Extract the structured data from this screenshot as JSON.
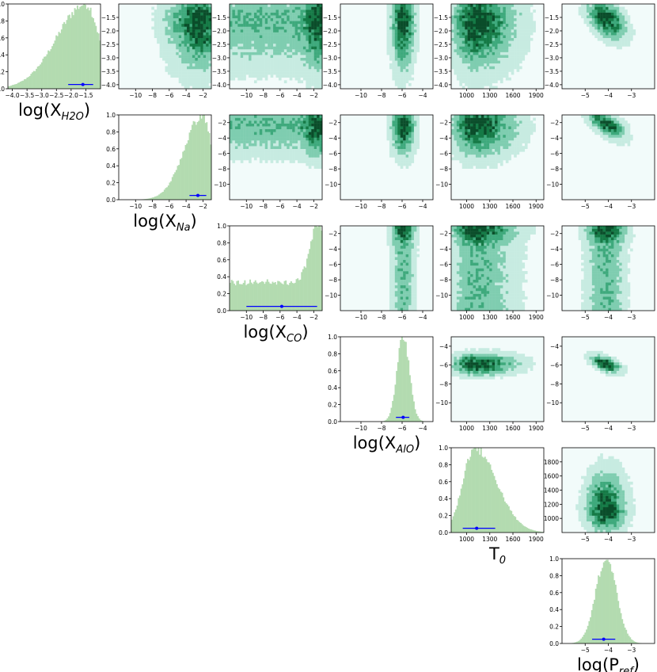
{
  "chart_data": {
    "type": "corner",
    "parameters": [
      {
        "name": "logX_H2O",
        "label_base": "log(X",
        "label_sub": "H2O",
        "label_end": ")",
        "range": [
          -4.15,
          -1.0
        ],
        "ticks": [
          -4.0,
          -3.5,
          -3.0,
          -2.5,
          -2.0,
          -1.5
        ],
        "tick_labels": [
          "−4.0",
          "−3.5",
          "−3.0",
          "−2.5",
          "−2.0",
          "−1.5"
        ],
        "mode": -1.5,
        "median": -1.6,
        "err_low": -2.1,
        "err_high": -1.25,
        "width": 0.45,
        "skew": "left"
      },
      {
        "name": "logX_Na",
        "label_base": "log(X",
        "label_sub": "Na",
        "label_end": ")",
        "range": [
          -12,
          -1
        ],
        "ticks": [
          -10,
          -8,
          -6,
          -4,
          -2
        ],
        "tick_labels": [
          "−10",
          "−8",
          "−6",
          "−4",
          "−2"
        ],
        "mode": -2.0,
        "median": -2.6,
        "err_low": -3.6,
        "err_high": -1.6,
        "width": 1.0,
        "skew": "left"
      },
      {
        "name": "logX_CO",
        "label_base": "log(X",
        "label_sub": "CO",
        "label_end": ")",
        "range": [
          -12,
          -1
        ],
        "ticks": [
          -10,
          -8,
          -6,
          -4,
          -2
        ],
        "tick_labels": [
          "−10",
          "−8",
          "−6",
          "−4",
          "−2"
        ],
        "mode": -1.5,
        "median": -5.8,
        "err_low": -10.0,
        "err_high": -1.6,
        "width": 1.0,
        "skew": "flat"
      },
      {
        "name": "logX_AlO",
        "label_base": "log(X",
        "label_sub": "AlO",
        "label_end": ")",
        "range": [
          -12,
          -3
        ],
        "ticks": [
          -10,
          -8,
          -6,
          -4
        ],
        "tick_labels": [
          "−10",
          "−8",
          "−6",
          "−4"
        ],
        "mode": -5.9,
        "median": -5.9,
        "err_low": -6.6,
        "err_high": -5.3,
        "width": 0.6,
        "skew": "none"
      },
      {
        "name": "T0",
        "label_base": "T",
        "label_sub": "0",
        "label_end": "",
        "range": [
          800,
          2000
        ],
        "ticks": [
          1000,
          1300,
          1600,
          1900
        ],
        "tick_labels": [
          "1000",
          "1300",
          "1600",
          "1900"
        ],
        "mode": 1100,
        "median": 1130,
        "err_low": 950,
        "err_high": 1370,
        "width": 150,
        "skew": "right"
      },
      {
        "name": "logP_ref",
        "label_base": "log(P",
        "label_sub": "ref",
        "label_end": ")",
        "range": [
          -6,
          -2
        ],
        "ticks": [
          -5,
          -4,
          -3
        ],
        "tick_labels": [
          "−5",
          "−4",
          "−3"
        ],
        "mode": -4.1,
        "median": -4.2,
        "err_low": -4.7,
        "err_high": -3.7,
        "width": 0.45,
        "skew": "none"
      }
    ],
    "panel_ranges": {
      "cols": [
        [
          -12,
          -1
        ],
        [
          -12,
          -1
        ],
        [
          -12,
          -1
        ],
        [
          -12,
          -3
        ],
        [
          800,
          2000
        ],
        [
          -6,
          -2
        ]
      ],
      "rows": [
        [
          -4.15,
          -1.0
        ],
        [
          -12,
          -1
        ],
        [
          -12,
          -1
        ],
        [
          -12,
          -3
        ],
        [
          800,
          2000
        ],
        [
          -6,
          -2
        ]
      ],
      "row_ticks": [
        [
          -4.0,
          -3.5,
          -3.0,
          -2.5,
          -2.0,
          -1.5
        ],
        [
          -10,
          -8,
          -6,
          -4,
          -2
        ],
        [
          -10,
          -8,
          -6,
          -4,
          -2
        ],
        [
          -10,
          -8,
          -6,
          -4
        ],
        [
          1000,
          1200,
          1400,
          1600,
          1800
        ],
        []
      ],
      "row_tick_labels": [
        [
          "−4.0",
          "−3.5",
          "−3.0",
          "−2.5",
          "−2.0",
          "−1.5"
        ],
        [
          "−10",
          "−8",
          "−6",
          "−4",
          "−2"
        ],
        [
          "−10",
          "−8",
          "−6",
          "−4",
          "−2"
        ],
        [
          "−10",
          "−8",
          "−6",
          "−4"
        ],
        [
          "1000",
          "1200",
          "1400",
          "1600",
          "1800"
        ],
        []
      ]
    },
    "hist_yticks": [
      0.0,
      0.2,
      0.4,
      0.6,
      0.8,
      1.0
    ],
    "hist_ytick_labels": [
      "0.0",
      "0.2",
      "0.4",
      "0.6",
      "0.8",
      "1.0"
    ],
    "hist_color": "#b3dbb0",
    "errorbar_color": "#0000ff",
    "density_colormap": [
      "#f2fbfa",
      "#c7ebe1",
      "#7fcdb0",
      "#3ea97c",
      "#157a46",
      "#0a4d2a"
    ],
    "errorbar_y": 0.05,
    "grid": false
  }
}
